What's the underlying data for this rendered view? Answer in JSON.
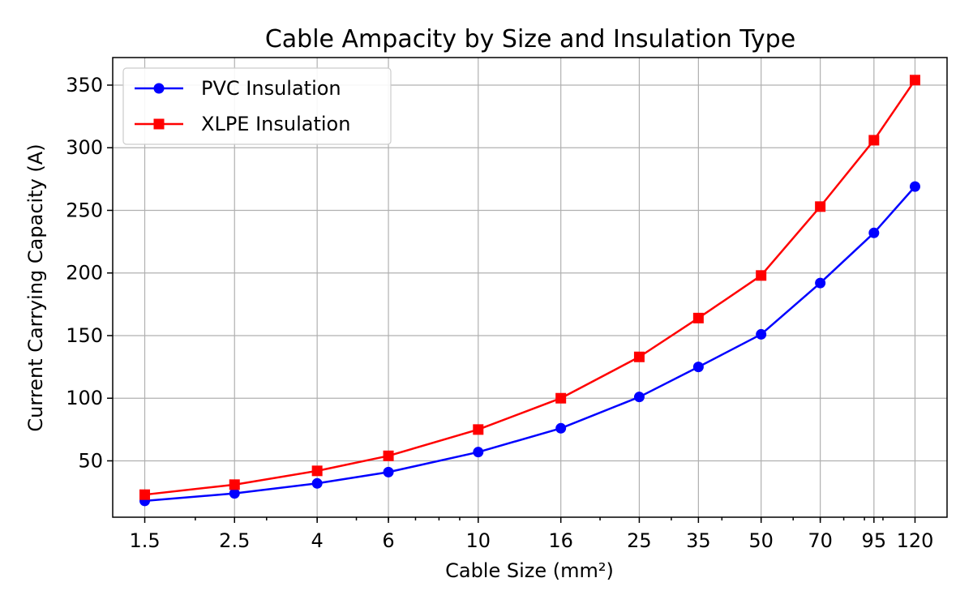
{
  "chart_data": {
    "type": "line",
    "title": "Cable Ampacity by Size and Insulation Type",
    "xlabel": "Cable Size (mm²)",
    "ylabel": "Current Carrying Capacity (A)",
    "x_scale": "log",
    "xlim": [
      1.25,
      144
    ],
    "ylim": [
      5,
      372
    ],
    "grid": true,
    "legend_position": "top-left",
    "x": [
      1.5,
      2.5,
      4,
      6,
      10,
      16,
      25,
      35,
      50,
      70,
      95,
      120
    ],
    "x_tick_labels": [
      "1.5",
      "2.5",
      "4",
      "6",
      "10",
      "16",
      "25",
      "35",
      "50",
      "70",
      "95",
      "120"
    ],
    "y_ticks": [
      50,
      100,
      150,
      200,
      250,
      300,
      350
    ],
    "y_tick_labels": [
      "50",
      "100",
      "150",
      "200",
      "250",
      "300",
      "350"
    ],
    "series": [
      {
        "name": "PVC Insulation",
        "color": "#0000ff",
        "marker": "circle",
        "values": [
          18,
          24,
          32,
          41,
          57,
          76,
          101,
          125,
          151,
          192,
          232,
          269
        ]
      },
      {
        "name": "XLPE Insulation",
        "color": "#ff0000",
        "marker": "square",
        "values": [
          23,
          31,
          42,
          54,
          75,
          100,
          133,
          164,
          198,
          253,
          306,
          354
        ]
      }
    ]
  }
}
